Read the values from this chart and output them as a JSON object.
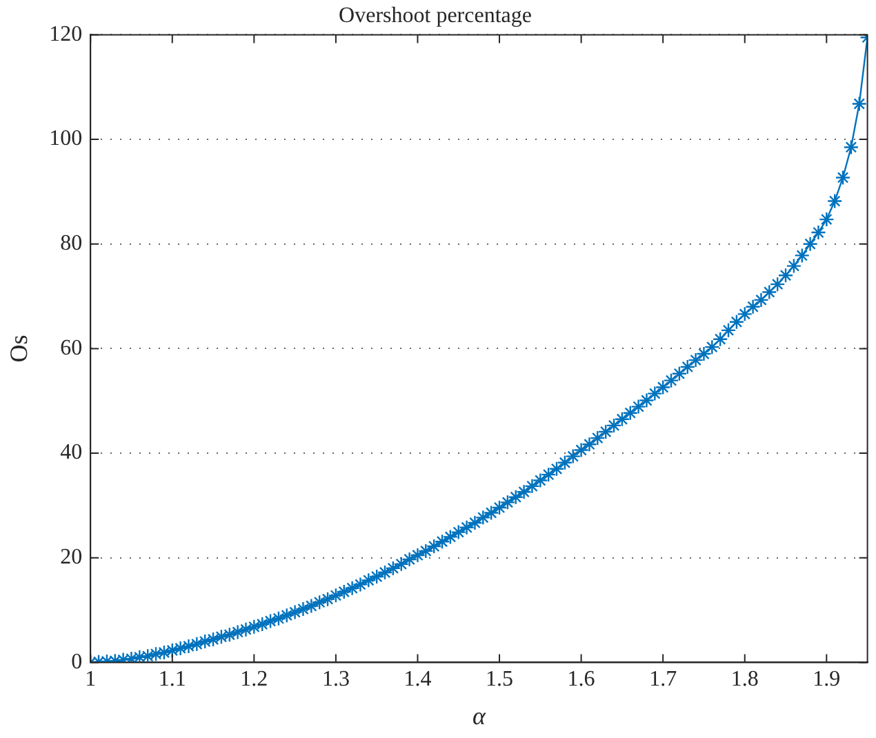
{
  "chart_data": {
    "type": "line",
    "title": "Overshoot percentage",
    "xlabel": "α",
    "ylabel": "Os",
    "x": [
      1.0,
      1.01,
      1.02,
      1.03,
      1.04,
      1.05,
      1.06,
      1.07,
      1.08,
      1.09,
      1.1,
      1.11,
      1.12,
      1.13,
      1.14,
      1.15,
      1.16,
      1.17,
      1.18,
      1.19,
      1.2,
      1.21,
      1.22,
      1.23,
      1.24,
      1.25,
      1.26,
      1.27,
      1.28,
      1.29,
      1.3,
      1.31,
      1.32,
      1.33,
      1.34,
      1.35,
      1.36,
      1.37,
      1.38,
      1.39,
      1.4,
      1.41,
      1.42,
      1.43,
      1.44,
      1.45,
      1.46,
      1.47,
      1.48,
      1.49,
      1.5,
      1.51,
      1.52,
      1.53,
      1.54,
      1.55,
      1.56,
      1.57,
      1.58,
      1.59,
      1.6,
      1.61,
      1.62,
      1.63,
      1.64,
      1.65,
      1.66,
      1.67,
      1.68,
      1.69,
      1.7,
      1.71,
      1.72,
      1.73,
      1.74,
      1.75,
      1.76,
      1.77,
      1.78,
      1.79,
      1.8,
      1.81,
      1.82,
      1.83,
      1.84,
      1.85,
      1.86,
      1.87,
      1.88,
      1.89,
      1.9,
      1.91,
      1.92,
      1.93,
      1.94,
      1.95
    ],
    "series": [
      {
        "color": "#0072bd",
        "values": [
          0,
          0.1,
          0.2,
          0.3,
          0.5,
          0.7,
          1.0,
          1.2,
          1.6,
          1.9,
          2.3,
          2.7,
          3.1,
          3.5,
          4.0,
          4.4,
          4.9,
          5.3,
          5.8,
          6.3,
          6.8,
          7.3,
          7.9,
          8.4,
          9.0,
          9.6,
          10.2,
          10.8,
          11.5,
          12.1,
          12.8,
          13.5,
          14.2,
          14.9,
          15.7,
          16.4,
          17.2,
          18.0,
          18.8,
          19.7,
          20.5,
          21.3,
          22.2,
          23.1,
          24.0,
          24.9,
          25.8,
          26.7,
          27.7,
          28.6,
          29.6,
          30.6,
          31.6,
          32.6,
          33.7,
          34.8,
          35.9,
          37.0,
          38.2,
          39.4,
          40.6,
          41.7,
          42.9,
          44.1,
          45.3,
          46.5,
          47.7,
          48.9,
          50.1,
          51.4,
          52.6,
          53.9,
          55.2,
          56.5,
          57.8,
          59.0,
          60.3,
          61.8,
          63.5,
          65.1,
          66.6,
          68.0,
          69.3,
          70.8,
          72.3,
          74.0,
          75.8,
          77.8,
          80.0,
          82.2,
          84.7,
          88.2,
          92.7,
          98.5,
          106.8,
          119.5
        ]
      }
    ],
    "xlim": [
      1,
      1.95
    ],
    "xticks": [
      1,
      1.1,
      1.2,
      1.3,
      1.4,
      1.5,
      1.6,
      1.7,
      1.8,
      1.9
    ],
    "ylim": [
      0,
      120
    ],
    "yticks": [
      0,
      20,
      40,
      60,
      80,
      100,
      120
    ],
    "grid": "y",
    "legend": false,
    "marker": "cross",
    "line_style": "solid"
  }
}
